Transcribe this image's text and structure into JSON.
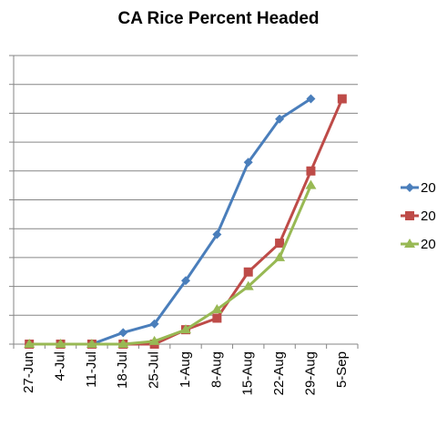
{
  "chart_data": {
    "type": "line",
    "title": "CA Rice Percent Headed",
    "categories": [
      "27-Jun",
      "4-Jul",
      "11-Jul",
      "18-Jul",
      "25-Jul",
      "1-Aug",
      "8-Aug",
      "15-Aug",
      "22-Aug",
      "29-Aug",
      "5-Sep"
    ],
    "ylim": [
      0,
      100
    ],
    "y_ticks": [
      0,
      10,
      20,
      30,
      40,
      50,
      60,
      70,
      80,
      90,
      100
    ],
    "y_tick_labels_visible": false,
    "grid": true,
    "legend_position": "right",
    "series": [
      {
        "name": "20",
        "color": "#4a7ebb",
        "marker": "diamond",
        "values": [
          0,
          0,
          0,
          4,
          7,
          22,
          38,
          63,
          78,
          85,
          null
        ]
      },
      {
        "name": "20",
        "color": "#be4b48",
        "marker": "square",
        "values": [
          0,
          0,
          0,
          0,
          0,
          5,
          9,
          25,
          35,
          60,
          85
        ]
      },
      {
        "name": "20",
        "color": "#98b954",
        "marker": "triangle",
        "values": [
          0,
          0,
          0,
          0,
          1,
          5,
          12,
          20,
          30,
          55,
          null
        ]
      }
    ]
  }
}
